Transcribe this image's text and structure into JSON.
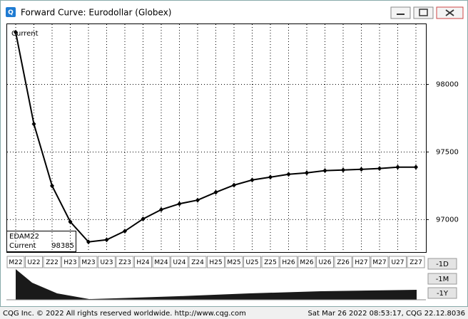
{
  "window": {
    "title": "Forward Curve: Eurodollar (Globex)"
  },
  "chart_data": {
    "type": "line",
    "annotation": "Current",
    "categories": [
      "M22",
      "U22",
      "Z22",
      "H23",
      "M23",
      "U23",
      "Z23",
      "H24",
      "M24",
      "U24",
      "Z24",
      "H25",
      "M25",
      "U25",
      "Z25",
      "H26",
      "M26",
      "U26",
      "Z26",
      "H27",
      "M27",
      "U27",
      "Z27"
    ],
    "series": [
      {
        "name": "Current",
        "color": "#000000",
        "values": [
          98385,
          97707,
          97250,
          96984,
          96835,
          96851,
          96915,
          97005,
          97074,
          97117,
          97144,
          97202,
          97255,
          97293,
          97314,
          97335,
          97346,
          97362,
          97367,
          97372,
          97378,
          97388,
          97388
        ]
      }
    ],
    "legend": {
      "symbol": "EDAM22"
    },
    "ylim": [
      96760,
      98445
    ],
    "yticks": [
      97000,
      97500,
      98000
    ],
    "grid": true
  },
  "buttons": [
    "-1D",
    "-1M",
    "-1Y"
  ],
  "status": {
    "left": "CQG Inc. © 2022 All rights reserved worldwide. http://www.cqg.com",
    "right": "Sat Mar 26 2022 08:53:17, CQG 22.12.8036"
  }
}
